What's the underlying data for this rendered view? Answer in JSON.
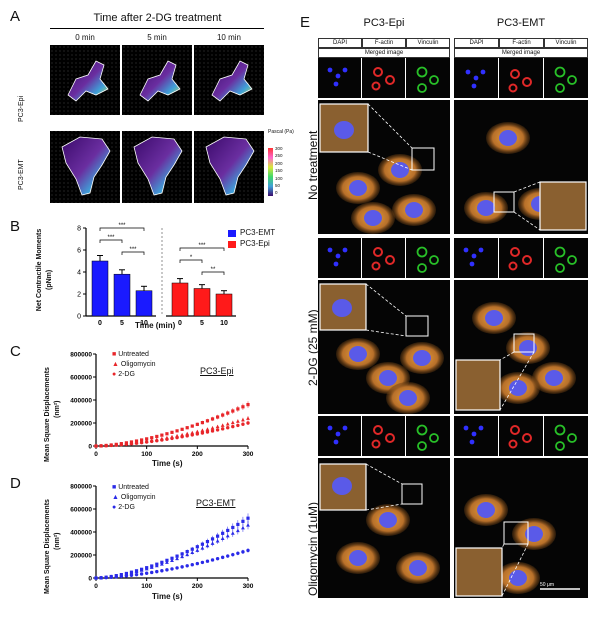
{
  "panels": {
    "A": "A",
    "B": "B",
    "C": "C",
    "D": "D",
    "E": "E"
  },
  "panelA": {
    "title": "Time after 2-DG treatment",
    "columns": [
      "0 min",
      "5 min",
      "10 min"
    ],
    "rows": [
      "PC3-Epi",
      "PC3-EMT"
    ],
    "colorbar_title": "Pascal\n(Pa)",
    "colorbar_ticks": [
      "300",
      "250",
      "200",
      "150",
      "100",
      "50",
      "0"
    ]
  },
  "panelB": {
    "ylabel": "Net Contractile Moments",
    "yunit": "(pNm)",
    "xlabel": "Time (min)",
    "legend": [
      "PC3-EMT",
      "PC3-Epi"
    ],
    "sig": [
      "***",
      "***",
      "***",
      "***",
      "*",
      "**"
    ]
  },
  "panelC": {
    "label": "PC3-Epi",
    "legend": [
      "Untreated",
      "Oligomycin",
      "2-DG"
    ],
    "ylabel": "Mean Square Displacements",
    "yunit": "(nm²)",
    "xlabel": "Time (s)"
  },
  "panelD": {
    "label": "PC3-EMT",
    "legend": [
      "Untreated",
      "Oligomycin",
      "2-DG"
    ],
    "ylabel": "Mean Square Displacements",
    "yunit": "(nm²)",
    "xlabel": "Time (s)"
  },
  "panelE": {
    "col_titles": [
      "PC3-Epi",
      "PC3-EMT"
    ],
    "channels": [
      "DAPI",
      "F-actin",
      "Vinculin"
    ],
    "merged": "Merged image",
    "rows": [
      "No treatment",
      "2-DG (25 mM)",
      "Oligomycin (1uM)"
    ],
    "scalebar": "50 μm"
  },
  "chart_data": [
    {
      "type": "bar",
      "title": "",
      "xlabel": "Time (min)",
      "ylabel": "Net Contractile Moments (pNm)",
      "ylim": [
        0,
        8
      ],
      "yticks": [
        0,
        2,
        4,
        6,
        8
      ],
      "categories": [
        "0",
        "5",
        "10"
      ],
      "series": [
        {
          "name": "PC3-EMT",
          "color": "#1a1aff",
          "values": [
            5.0,
            3.8,
            2.3
          ],
          "errors": [
            0.5,
            0.4,
            0.4
          ]
        },
        {
          "name": "PC3-Epi",
          "color": "#ff1a1a",
          "values": [
            3.0,
            2.5,
            2.0
          ],
          "errors": [
            0.4,
            0.35,
            0.3
          ]
        }
      ]
    },
    {
      "type": "scatter",
      "title": "PC3-Epi",
      "xlabel": "Time (s)",
      "ylabel": "Mean Square Displacements (nm²)",
      "xlim": [
        0,
        300
      ],
      "ylim": [
        0,
        800000
      ],
      "xticks": [
        0,
        100,
        200,
        300
      ],
      "yticks": [
        0,
        200000,
        400000,
        600000,
        800000
      ],
      "series": [
        {
          "name": "Untreated",
          "marker": "square",
          "color": "#e8262a",
          "end": 360000
        },
        {
          "name": "Oligomycin",
          "marker": "triangle",
          "color": "#e8262a",
          "end": 240000
        },
        {
          "name": "2-DG",
          "marker": "circle",
          "color": "#e8262a",
          "end": 200000
        }
      ]
    },
    {
      "type": "scatter",
      "title": "PC3-EMT",
      "xlabel": "Time (s)",
      "ylabel": "Mean Square Displacements (nm²)",
      "xlim": [
        0,
        300
      ],
      "ylim": [
        0,
        800000
      ],
      "xticks": [
        0,
        100,
        200,
        300
      ],
      "yticks": [
        0,
        200000,
        400000,
        600000,
        800000
      ],
      "series": [
        {
          "name": "Untreated",
          "marker": "square",
          "color": "#2a2ae8",
          "end": 520000
        },
        {
          "name": "Oligomycin",
          "marker": "triangle",
          "color": "#2a2ae8",
          "end": 460000
        },
        {
          "name": "2-DG",
          "marker": "circle",
          "color": "#2a2ae8",
          "end": 240000
        }
      ]
    }
  ]
}
